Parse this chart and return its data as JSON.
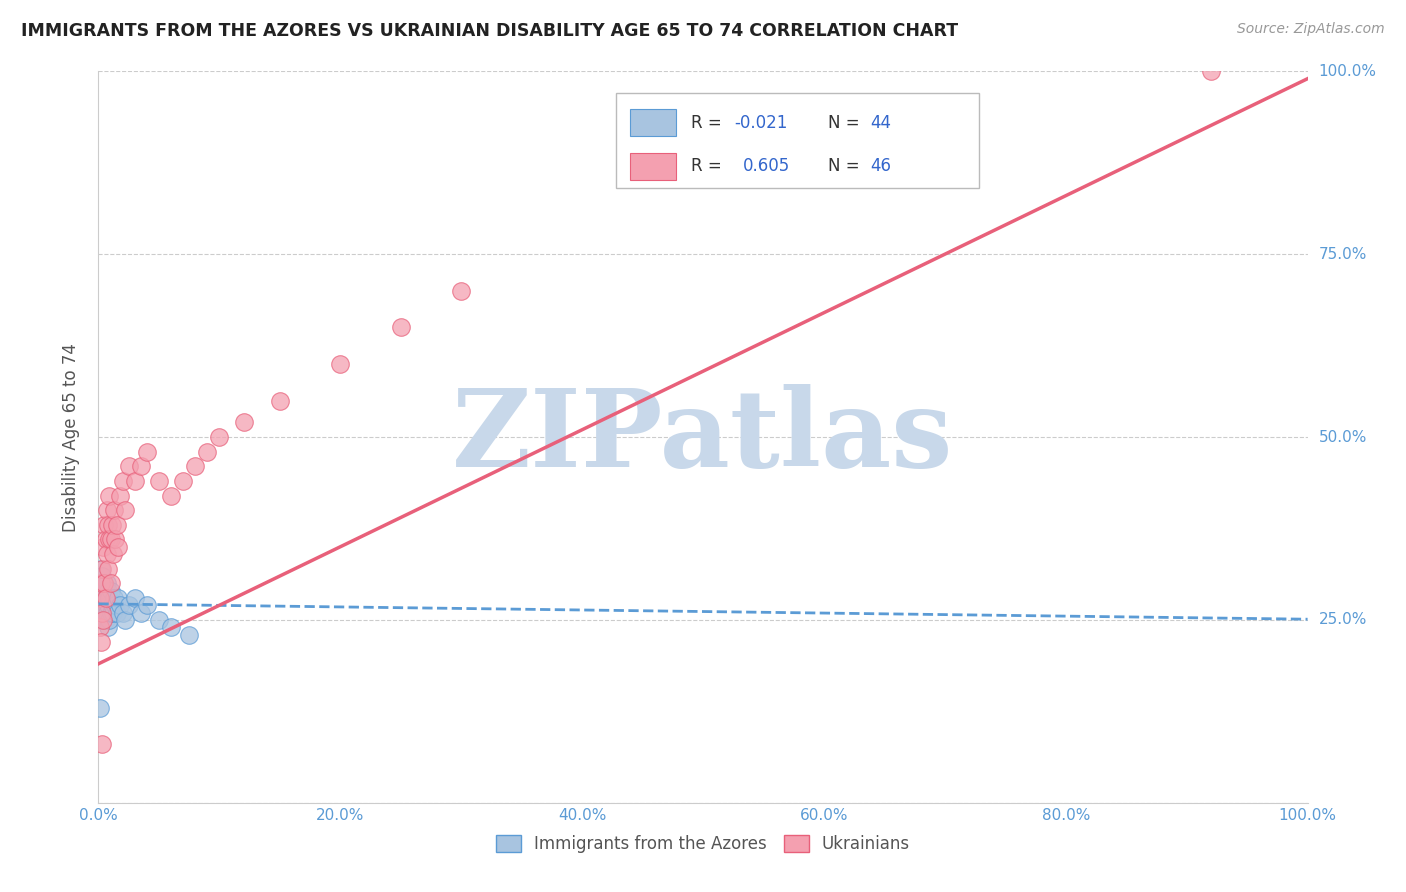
{
  "title": "IMMIGRANTS FROM THE AZORES VS UKRAINIAN DISABILITY AGE 65 TO 74 CORRELATION CHART",
  "source": "Source: ZipAtlas.com",
  "ylabel": "Disability Age 65 to 74",
  "xlim": [
    0,
    1.0
  ],
  "ylim": [
    0,
    1.0
  ],
  "xticks": [
    0.0,
    0.2,
    0.4,
    0.6,
    0.8,
    1.0
  ],
  "yticks": [
    0.0,
    0.25,
    0.5,
    0.75,
    1.0
  ],
  "xtick_labels": [
    "0.0%",
    "20.0%",
    "40.0%",
    "60.0%",
    "80.0%",
    "100.0%"
  ],
  "ytick_labels_right": [
    "",
    "25.0%",
    "50.0%",
    "75.0%",
    "100.0%"
  ],
  "blue_color": "#a8c4e0",
  "pink_color": "#f4a0b0",
  "blue_edge_color": "#5b9bd5",
  "pink_edge_color": "#e8607a",
  "blue_line_color": "#5b9bd5",
  "pink_line_color": "#e8607a",
  "watermark_color": "#c8d8ea",
  "title_color": "#222222",
  "axis_label_color": "#555555",
  "tick_color": "#5b9bd5",
  "grid_color": "#cccccc",
  "azores_x": [
    0.001,
    0.001,
    0.002,
    0.002,
    0.002,
    0.003,
    0.003,
    0.003,
    0.004,
    0.004,
    0.004,
    0.005,
    0.005,
    0.005,
    0.006,
    0.006,
    0.006,
    0.007,
    0.007,
    0.007,
    0.008,
    0.008,
    0.008,
    0.009,
    0.009,
    0.01,
    0.01,
    0.011,
    0.012,
    0.013,
    0.014,
    0.015,
    0.016,
    0.018,
    0.02,
    0.022,
    0.025,
    0.03,
    0.035,
    0.04,
    0.05,
    0.06,
    0.075,
    0.001
  ],
  "azores_y": [
    0.26,
    0.29,
    0.28,
    0.3,
    0.32,
    0.27,
    0.29,
    0.31,
    0.25,
    0.27,
    0.3,
    0.26,
    0.28,
    0.3,
    0.25,
    0.27,
    0.29,
    0.26,
    0.28,
    0.3,
    0.24,
    0.27,
    0.29,
    0.25,
    0.28,
    0.26,
    0.29,
    0.27,
    0.26,
    0.28,
    0.27,
    0.26,
    0.28,
    0.27,
    0.26,
    0.25,
    0.27,
    0.28,
    0.26,
    0.27,
    0.25,
    0.24,
    0.23,
    0.13
  ],
  "ukrainian_x": [
    0.001,
    0.001,
    0.002,
    0.002,
    0.003,
    0.003,
    0.004,
    0.004,
    0.005,
    0.005,
    0.006,
    0.006,
    0.007,
    0.007,
    0.008,
    0.008,
    0.009,
    0.009,
    0.01,
    0.01,
    0.011,
    0.012,
    0.013,
    0.014,
    0.015,
    0.016,
    0.018,
    0.02,
    0.022,
    0.025,
    0.03,
    0.035,
    0.04,
    0.05,
    0.06,
    0.07,
    0.08,
    0.09,
    0.1,
    0.12,
    0.15,
    0.2,
    0.25,
    0.3,
    0.92,
    0.003
  ],
  "ukrainian_y": [
    0.24,
    0.28,
    0.22,
    0.3,
    0.26,
    0.32,
    0.25,
    0.35,
    0.3,
    0.38,
    0.28,
    0.36,
    0.34,
    0.4,
    0.32,
    0.38,
    0.36,
    0.42,
    0.3,
    0.36,
    0.38,
    0.34,
    0.4,
    0.36,
    0.38,
    0.35,
    0.42,
    0.44,
    0.4,
    0.46,
    0.44,
    0.46,
    0.48,
    0.44,
    0.42,
    0.44,
    0.46,
    0.48,
    0.5,
    0.52,
    0.55,
    0.6,
    0.65,
    0.7,
    1.0,
    0.08
  ],
  "azores_trend_slope": -0.021,
  "azores_trend_intercept": 0.272,
  "ukrainian_trend_slope": 0.8,
  "ukrainian_trend_intercept": 0.19
}
